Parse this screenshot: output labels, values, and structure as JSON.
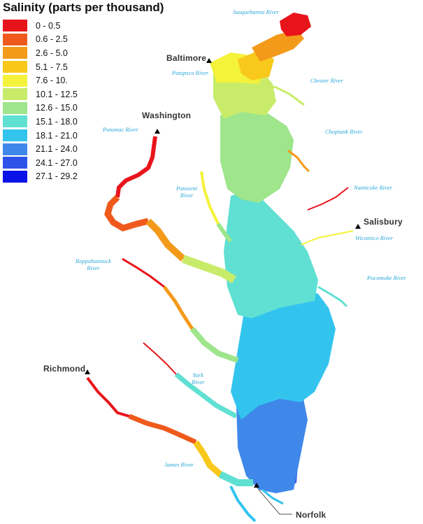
{
  "legend": {
    "title": "Salinity (parts per thousand)",
    "items": [
      {
        "label": "0 - 0.5",
        "color": "#e8141b"
      },
      {
        "label": "0.6 - 2.5",
        "color": "#ef5a1c"
      },
      {
        "label": "2.6 - 5.0",
        "color": "#f39a1a"
      },
      {
        "label": "5.1 - 7.5",
        "color": "#f8c81a"
      },
      {
        "label": "7.6 - 10.",
        "color": "#f4f23a"
      },
      {
        "label": "10.1 - 12.5",
        "color": "#c8ec6a"
      },
      {
        "label": "12.6 - 15.0",
        "color": "#9ee58c"
      },
      {
        "label": "15.1 - 18.0",
        "color": "#5fe0d2"
      },
      {
        "label": "18.1 - 21.0",
        "color": "#33c4ee"
      },
      {
        "label": "21.1 - 24.0",
        "color": "#3f88ea"
      },
      {
        "label": "24.1 - 27.0",
        "color": "#2f53e8"
      },
      {
        "label": "27.1 - 29.2",
        "color": "#0a12e6"
      }
    ]
  },
  "cities": {
    "baltimore": "Baltimore",
    "washington": "Washington",
    "salisbury": "Salisbury",
    "richmond": "Richmond",
    "norfolk": "Norfolk"
  },
  "rivers": {
    "susquehanna": "Susquehanna River",
    "patapsco": "Patapsco River",
    "chester": "Chester River",
    "choptank": "Choptank River",
    "potomac": "Potomac River",
    "patuxent_1": "Patuxent",
    "patuxent_2": "River",
    "nanticoke": "Nanticoke River",
    "wicomico": "Wicomico River",
    "pocomoke": "Pocomoke River",
    "rappahannock_1": "Rappahannock",
    "rappahannock_2": "River",
    "york_1": "York",
    "york_2": "River",
    "james": "James River"
  }
}
